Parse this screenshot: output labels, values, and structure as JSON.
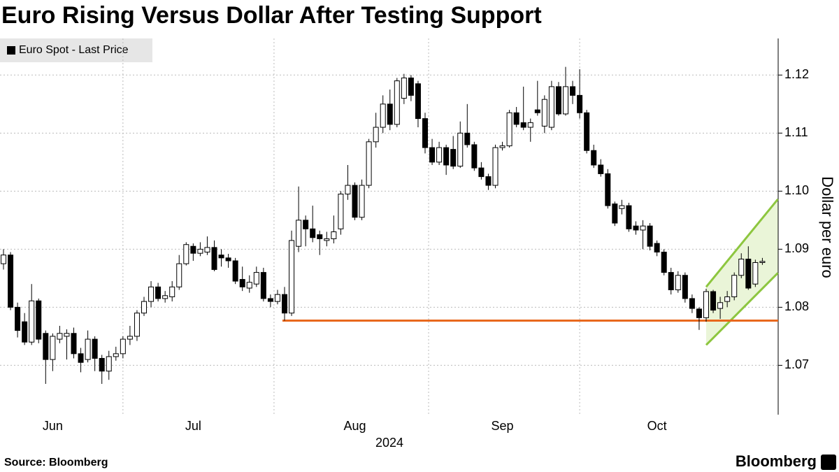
{
  "chart_data": {
    "type": "candlestick",
    "title": "Euro Rising Versus Dollar After Testing Support",
    "legend": "Euro Spot - Last Price",
    "y_label": "Dollar per euro",
    "x_label": "2024",
    "source": "Source: Bloomberg",
    "brand": "Bloomberg",
    "categories": [
      null,
      null,
      null,
      null,
      null,
      null,
      null,
      "Jun",
      null,
      null,
      null,
      null,
      null,
      null,
      null,
      null,
      null,
      null,
      null,
      null,
      null,
      null,
      null,
      null,
      null,
      null,
      null,
      "Jul",
      null,
      null,
      null,
      null,
      null,
      null,
      null,
      null,
      null,
      null,
      null,
      null,
      null,
      null,
      null,
      null,
      null,
      null,
      null,
      null,
      null,
      null,
      "Aug",
      null,
      null,
      null,
      null,
      null,
      null,
      null,
      null,
      null,
      null,
      null,
      null,
      null,
      null,
      null,
      null,
      null,
      null,
      null,
      null,
      "Sep",
      null,
      null,
      null,
      null,
      null,
      null,
      null,
      null,
      null,
      null,
      null,
      null,
      null,
      null,
      null,
      null,
      null,
      null,
      null,
      null,
      null,
      "Oct",
      null,
      null,
      null,
      null,
      null,
      null,
      null,
      null,
      null,
      null,
      null,
      null,
      null,
      null,
      null
    ],
    "open": [
      1.0875,
      1.089,
      1.08,
      1.0775,
      1.074,
      1.0811,
      1.0755,
      1.071,
      1.0745,
      1.075,
      1.0755,
      1.072,
      1.071,
      1.0745,
      1.0712,
      1.069,
      1.0715,
      1.072,
      1.0745,
      1.075,
      1.079,
      1.081,
      1.0835,
      1.0815,
      1.0818,
      1.0835,
      1.0875,
      1.0905,
      1.0893,
      1.0895,
      1.0903,
      1.089,
      1.0885,
      1.088,
      1.0848,
      1.0833,
      1.084,
      1.086,
      1.0815,
      1.081,
      1.0822,
      1.079,
      1.0905,
      1.095,
      1.0935,
      1.0925,
      1.0915,
      1.0918,
      1.0935,
      1.0995,
      1.101,
      1.0955,
      1.101,
      1.1085,
      1.111,
      1.115,
      1.1115,
      1.116,
      1.1195,
      1.1185,
      1.1125,
      1.1075,
      1.105,
      1.1075,
      1.1072,
      1.1043,
      1.11,
      1.108,
      1.104,
      1.1025,
      1.101,
      1.1075,
      1.1078,
      1.1135,
      1.1118,
      1.111,
      1.114,
      1.1112,
      1.111,
      1.118,
      1.1133,
      1.118,
      1.1165,
      1.1135,
      1.107,
      1.1045,
      1.103,
      1.0978,
      1.097,
      1.0975,
      1.094,
      1.0933,
      1.094,
      1.091,
      1.0895,
      1.086,
      1.083,
      1.0855,
      1.0815,
      1.0797,
      1.0782,
      1.0827,
      1.0798,
      1.081,
      1.0818,
      1.0855,
      1.0883,
      1.084,
      1.0877
    ],
    "high": [
      1.09,
      1.0895,
      1.0808,
      1.079,
      1.084,
      1.0815,
      1.076,
      1.0755,
      1.0768,
      1.0762,
      1.0765,
      1.073,
      1.076,
      1.075,
      1.0718,
      1.0725,
      1.0732,
      1.075,
      1.0768,
      1.0795,
      1.0818,
      1.0845,
      1.0842,
      1.0828,
      1.0845,
      1.089,
      1.0912,
      1.091,
      1.0912,
      1.0922,
      1.0915,
      1.09,
      1.0892,
      1.0885,
      1.087,
      1.0855,
      1.087,
      1.0868,
      1.0822,
      1.083,
      1.0835,
      1.0932,
      1.1008,
      1.0958,
      1.0975,
      1.0932,
      1.093,
      1.0958,
      1.1,
      1.1045,
      1.1015,
      1.102,
      1.109,
      1.1135,
      1.1165,
      1.1175,
      1.1195,
      1.1202,
      1.12,
      1.119,
      1.1135,
      1.109,
      1.1085,
      1.108,
      1.1095,
      1.112,
      1.115,
      1.1085,
      1.105,
      1.103,
      1.108,
      1.1085,
      1.114,
      1.1145,
      1.118,
      1.1125,
      1.119,
      1.1165,
      1.119,
      1.1188,
      1.1214,
      1.119,
      1.121,
      1.114,
      1.108,
      1.1055,
      1.1038,
      1.0982,
      1.0985,
      1.098,
      1.0948,
      1.095,
      1.0945,
      1.0915,
      1.09,
      1.0868,
      1.0862,
      1.086,
      1.0822,
      1.08,
      1.0832,
      1.083,
      1.0818,
      1.0828,
      1.086,
      1.0893,
      1.0905,
      1.0882,
      1.0885
    ],
    "low": [
      1.0865,
      1.0795,
      1.0748,
      1.0735,
      1.0735,
      1.0738,
      1.0668,
      1.069,
      1.0738,
      1.071,
      1.0712,
      1.0688,
      1.0705,
      1.069,
      1.0668,
      1.0675,
      1.0708,
      1.0712,
      1.0735,
      1.0742,
      1.0785,
      1.08,
      1.081,
      1.0808,
      1.081,
      1.083,
      1.0872,
      1.088,
      1.0888,
      1.089,
      1.0862,
      1.087,
      1.0868,
      1.084,
      1.0828,
      1.0825,
      1.0835,
      1.081,
      1.08,
      1.0805,
      1.0777,
      1.0785,
      1.0895,
      1.0905,
      1.0912,
      1.089,
      1.0905,
      1.091,
      1.0925,
      1.0985,
      1.095,
      1.095,
      1.1005,
      1.1075,
      1.11,
      1.1105,
      1.111,
      1.115,
      1.1155,
      1.111,
      1.1065,
      1.1045,
      1.1045,
      1.1028,
      1.1038,
      1.104,
      1.1075,
      1.1035,
      1.102,
      1.1002,
      1.1005,
      1.107,
      1.1075,
      1.111,
      1.1105,
      1.1085,
      1.113,
      1.11,
      1.1105,
      1.113,
      1.113,
      1.115,
      1.1125,
      1.1065,
      1.104,
      1.1025,
      1.097,
      1.094,
      1.096,
      1.093,
      1.0925,
      1.09,
      1.0898,
      1.0888,
      1.0855,
      1.0822,
      1.0825,
      1.0808,
      1.079,
      1.0761,
      1.0775,
      1.079,
      1.078,
      1.08,
      1.0812,
      1.085,
      1.083,
      1.0835,
      1.0873
    ],
    "close": [
      1.089,
      1.08,
      1.076,
      1.074,
      1.0811,
      1.0745,
      1.071,
      1.075,
      1.0755,
      1.0755,
      1.072,
      1.0705,
      1.0745,
      1.0712,
      1.069,
      1.0715,
      1.072,
      1.0745,
      1.075,
      1.079,
      1.081,
      1.0835,
      1.0815,
      1.082,
      1.0835,
      1.0875,
      1.0908,
      1.0893,
      1.09,
      1.0903,
      1.0865,
      1.0885,
      1.088,
      1.0845,
      1.0835,
      1.0843,
      1.086,
      1.0815,
      1.081,
      1.0822,
      1.079,
      1.0915,
      1.095,
      1.0935,
      1.092,
      1.0918,
      1.0918,
      1.093,
      1.0995,
      1.101,
      1.0955,
      1.101,
      1.1085,
      1.111,
      1.115,
      1.1115,
      1.119,
      1.1195,
      1.1165,
      1.1125,
      1.1075,
      1.105,
      1.1075,
      1.1045,
      1.1043,
      1.11,
      1.108,
      1.104,
      1.1025,
      1.101,
      1.1075,
      1.1078,
      1.1135,
      1.1115,
      1.111,
      1.1118,
      1.1135,
      1.1158,
      1.118,
      1.1133,
      1.118,
      1.1165,
      1.1135,
      1.107,
      1.1045,
      1.103,
      1.0975,
      1.0945,
      1.0975,
      1.0935,
      1.0933,
      1.094,
      1.0905,
      1.0895,
      1.086,
      1.083,
      1.0855,
      1.0815,
      1.0798,
      1.0782,
      1.0827,
      1.0795,
      1.0808,
      1.0818,
      1.0855,
      1.0883,
      1.0833,
      1.0877,
      1.0879
    ],
    "up_color": "#ffffff",
    "down_color": "#000000",
    "ylim": [
      1.0615,
      1.1263
    ],
    "yticks": [
      1.07,
      1.08,
      1.09,
      {
        "value": 1.1,
        "label": "1.10"
      },
      1.11,
      1.12
    ],
    "grid": true,
    "support": {
      "value": 1.0777,
      "start": 39.7,
      "color": "#e8681d"
    },
    "channel": {
      "x": [
        100,
        110.2
      ],
      "lower": [
        1.0735,
        1.0859
      ],
      "upper": [
        1.0835,
        1.0986
      ],
      "color": "#8dc63f",
      "fill": "#eaf5d8"
    }
  }
}
